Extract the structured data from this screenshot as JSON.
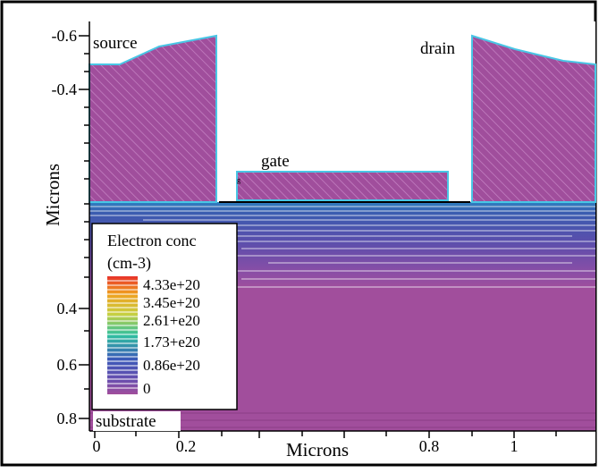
{
  "axes": {
    "y_label": "Microns",
    "x_label": "Microns",
    "y_ticks_top": [
      "-0.6",
      "-0.4"
    ],
    "y_ticks_bottom": [
      "0.4",
      "0.6",
      "0.8"
    ],
    "x_ticks": [
      "0",
      "0.2",
      "0.8",
      "1"
    ]
  },
  "regions": {
    "source": "source",
    "drain": "drain",
    "gate": "gate",
    "gate_small": "g",
    "substrate": "substrate"
  },
  "legend": {
    "title_line1": "Electron conc",
    "title_line2": "(cm-3)",
    "entries": [
      {
        "label": "4.33e+20",
        "color": "#e8322a"
      },
      {
        "label": "3.45e+20",
        "color": "#f0a020"
      },
      {
        "label": "2.61+e20",
        "color": "#c8d040"
      },
      {
        "label": "1.73+e20",
        "color": "#30c0a0"
      },
      {
        "label": "0.86e+20",
        "color": "#3a5ab8"
      },
      {
        "label": "0",
        "color": "#a14e9c"
      }
    ]
  },
  "colors": {
    "electrode_fill": "#a04e9c",
    "electrode_outline": "#49c6e5",
    "substrate": "#a14e9c",
    "channel_blue": "#3c5aa8",
    "border": "#000000"
  }
}
